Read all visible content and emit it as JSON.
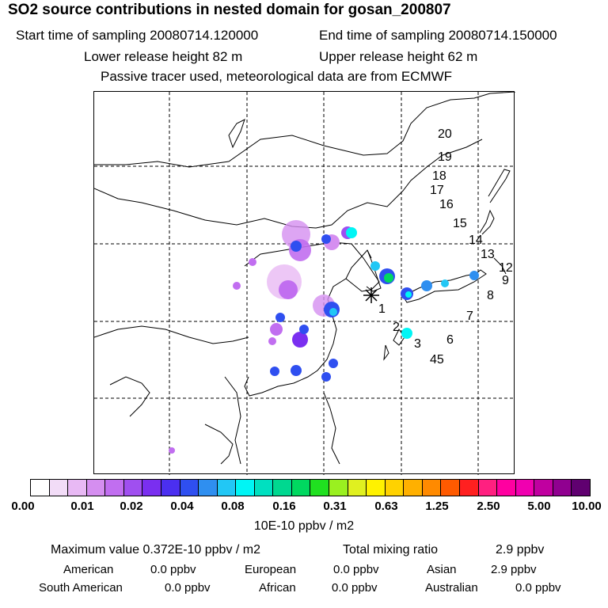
{
  "header": {
    "title": "SO2 source contributions in nested domain for gosan_200807",
    "start_label": "Start time of sampling 20080714.120000",
    "end_label": "End time of sampling 20080714.150000",
    "lower_label": "Lower release height   82 m",
    "upper_label": "Upper release height   62 m",
    "tracer_note": "Passive tracer used, meteorological data are from ECMWF"
  },
  "map": {
    "station_marker": "asterisk-icon",
    "trajectory_labels": [
      "1",
      "2",
      "3",
      "45",
      "6",
      "7",
      "8",
      "9",
      "12",
      "13",
      "14",
      "15",
      "16",
      "17",
      "18",
      "19",
      "20"
    ]
  },
  "legend": {
    "tick_labels": [
      "0.00",
      "0.01",
      "0.02",
      "0.04",
      "0.08",
      "0.16",
      "0.31",
      "0.63",
      "1.25",
      "2.50",
      "5.00",
      "10.00"
    ],
    "colors": [
      "#ffffff",
      "#f2dcf7",
      "#e8b9f4",
      "#d58ef0",
      "#c16ef0",
      "#a04ff0",
      "#7a2ff0",
      "#4b2ff0",
      "#2f4ff0",
      "#2f8ff0",
      "#22c7f5",
      "#00f5f5",
      "#00e0c0",
      "#00d890",
      "#00d860",
      "#20e020",
      "#9af020",
      "#e0f020",
      "#fff200",
      "#ffd200",
      "#ffb000",
      "#ff8a00",
      "#ff5a00",
      "#ff2020",
      "#ff2080",
      "#ff00a0",
      "#f000b0",
      "#c000a0",
      "#900090",
      "#600070"
    ],
    "units": "10E-10 ppbv / m2"
  },
  "stats": {
    "max_label": "Maximum value  0.372E-10 ppbv / m2",
    "total_label": "Total mixing ratio",
    "total_value": "2.9 ppbv",
    "american_label": "American",
    "american_value": "0.0 ppbv",
    "european_label": "European",
    "european_value": "0.0 ppbv",
    "asian_label": "Asian",
    "asian_value": "2.9 ppbv",
    "south_american_label": "South American",
    "south_american_value": "0.0 ppbv",
    "african_label": "African",
    "african_value": "0.0 ppbv",
    "australian_label": "Australian",
    "australian_value": "0.0 ppbv"
  }
}
